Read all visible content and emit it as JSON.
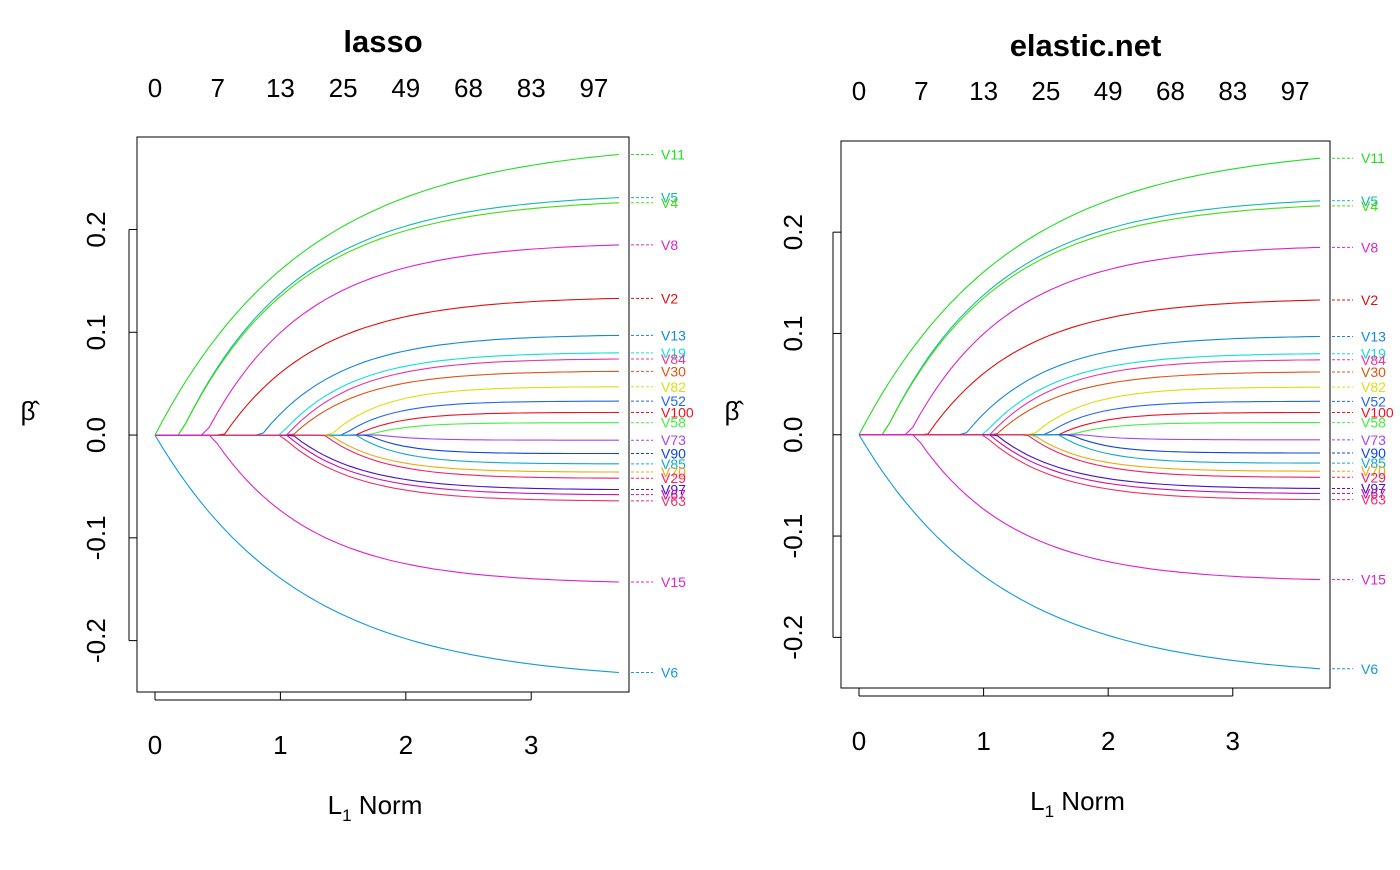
{
  "chart_data": [
    {
      "type": "line",
      "title": "lasso",
      "xlabel_main": "L",
      "xlabel_sub": "1",
      "xlabel_rest": " Norm",
      "ylabel": "β̂",
      "xlim": [
        0,
        3.7
      ],
      "ylim": [
        -0.25,
        0.29
      ],
      "x_ticks": [
        "0",
        "1",
        "2",
        "3"
      ],
      "y_ticks": [
        "-0.2",
        "-0.1",
        "0.0",
        "0.1",
        "0.2"
      ],
      "y_tick_values": [
        -0.2,
        -0.1,
        0.0,
        0.1,
        0.2
      ],
      "top_ticks": [
        "0",
        "7",
        "13",
        "25",
        "49",
        "68",
        "83",
        "97"
      ],
      "top_tick_positions": [
        0,
        0.5,
        1.0,
        1.5,
        2.0,
        2.5,
        3.0,
        3.5
      ],
      "series": [
        {
          "name": "V11",
          "color": "#22dd22",
          "entry": 0.0,
          "final": 0.273,
          "shape": 0.95
        },
        {
          "name": "V5",
          "color": "#11bbaa",
          "entry": 0.2,
          "final": 0.231,
          "shape": 1.2
        },
        {
          "name": "V4",
          "color": "#44dd11",
          "entry": 0.2,
          "final": 0.226,
          "shape": 1.2
        },
        {
          "name": "V8",
          "color": "#dd22cc",
          "entry": 0.4,
          "final": 0.185,
          "shape": 1.3
        },
        {
          "name": "V2",
          "color": "#dd1111",
          "entry": 0.55,
          "final": 0.133,
          "shape": 1.3
        },
        {
          "name": "V13",
          "color": "#1188dd",
          "entry": 0.85,
          "final": 0.097,
          "shape": 1.4
        },
        {
          "name": "V19",
          "color": "#11dddd",
          "entry": 1.0,
          "final": 0.08,
          "shape": 1.5
        },
        {
          "name": "V84",
          "color": "#ee3399",
          "entry": 1.05,
          "final": 0.074,
          "shape": 1.5
        },
        {
          "name": "V30",
          "color": "#dd5511",
          "entry": 1.1,
          "final": 0.062,
          "shape": 1.5
        },
        {
          "name": "V82",
          "color": "#dddd11",
          "entry": 1.4,
          "final": 0.047,
          "shape": 1.7
        },
        {
          "name": "V52",
          "color": "#2266ee",
          "entry": 1.5,
          "final": 0.033,
          "shape": 1.8
        },
        {
          "name": "V100",
          "color": "#ee1122",
          "entry": 1.6,
          "final": 0.022,
          "shape": 1.8
        },
        {
          "name": "V58",
          "color": "#44ee44",
          "entry": 1.7,
          "final": 0.012,
          "shape": 2.0
        },
        {
          "name": "V73",
          "color": "#aa44ee",
          "entry": 1.8,
          "final": -0.005,
          "shape": 2.0
        },
        {
          "name": "V90",
          "color": "#1144dd",
          "entry": 1.7,
          "final": -0.018,
          "shape": 2.0
        },
        {
          "name": "V85",
          "color": "#11aacc",
          "entry": 1.6,
          "final": -0.028,
          "shape": 1.8
        },
        {
          "name": "V70",
          "color": "#eeaa11",
          "entry": 1.4,
          "final": -0.036,
          "shape": 1.7
        },
        {
          "name": "V29",
          "color": "#ee2266",
          "entry": 1.35,
          "final": -0.042,
          "shape": 1.6
        },
        {
          "name": "V97",
          "color": "#4411cc",
          "entry": 1.1,
          "final": -0.053,
          "shape": 1.5
        },
        {
          "name": "V67",
          "color": "#cc11aa",
          "entry": 1.05,
          "final": -0.058,
          "shape": 1.5
        },
        {
          "name": "V63",
          "color": "#ee3366",
          "entry": 1.0,
          "final": -0.064,
          "shape": 1.5
        },
        {
          "name": "V15",
          "color": "#dd22cc",
          "entry": 0.45,
          "final": -0.143,
          "shape": 1.3
        },
        {
          "name": "V6",
          "color": "#1199dd",
          "entry": 0.0,
          "final": -0.231,
          "shape": 1.0
        }
      ]
    },
    {
      "type": "line",
      "title": "elastic.net",
      "xlabel_main": "L",
      "xlabel_sub": "1",
      "xlabel_rest": " Norm",
      "ylabel": "β̂",
      "xlim": [
        0,
        3.7
      ],
      "ylim": [
        -0.25,
        0.29
      ],
      "x_ticks": [
        "0",
        "1",
        "2",
        "3"
      ],
      "y_ticks": [
        "-0.2",
        "-0.1",
        "0.0",
        "0.1",
        "0.2"
      ],
      "y_tick_values": [
        -0.2,
        -0.1,
        0.0,
        0.1,
        0.2
      ],
      "top_ticks": [
        "0",
        "7",
        "13",
        "25",
        "49",
        "68",
        "83",
        "97"
      ],
      "top_tick_positions": [
        0,
        0.5,
        1.0,
        1.5,
        2.0,
        2.5,
        3.0,
        3.5
      ],
      "series": [
        {
          "name": "V11",
          "color": "#22dd22",
          "entry": 0.0,
          "final": 0.273,
          "shape": 0.95
        },
        {
          "name": "V5",
          "color": "#11bbaa",
          "entry": 0.2,
          "final": 0.231,
          "shape": 1.2
        },
        {
          "name": "V4",
          "color": "#44dd11",
          "entry": 0.2,
          "final": 0.226,
          "shape": 1.2
        },
        {
          "name": "V8",
          "color": "#dd22cc",
          "entry": 0.4,
          "final": 0.185,
          "shape": 1.3
        },
        {
          "name": "V2",
          "color": "#dd1111",
          "entry": 0.55,
          "final": 0.133,
          "shape": 1.3
        },
        {
          "name": "V13",
          "color": "#1188dd",
          "entry": 0.85,
          "final": 0.097,
          "shape": 1.4
        },
        {
          "name": "V19",
          "color": "#11dddd",
          "entry": 1.0,
          "final": 0.08,
          "shape": 1.5
        },
        {
          "name": "V84",
          "color": "#ee3399",
          "entry": 1.05,
          "final": 0.074,
          "shape": 1.5
        },
        {
          "name": "V30",
          "color": "#dd5511",
          "entry": 1.1,
          "final": 0.062,
          "shape": 1.5
        },
        {
          "name": "V82",
          "color": "#dddd11",
          "entry": 1.4,
          "final": 0.047,
          "shape": 1.7
        },
        {
          "name": "V52",
          "color": "#2266ee",
          "entry": 1.5,
          "final": 0.033,
          "shape": 1.8
        },
        {
          "name": "V100",
          "color": "#ee1122",
          "entry": 1.6,
          "final": 0.022,
          "shape": 1.8
        },
        {
          "name": "V58",
          "color": "#44ee44",
          "entry": 1.7,
          "final": 0.012,
          "shape": 2.0
        },
        {
          "name": "V73",
          "color": "#aa44ee",
          "entry": 1.8,
          "final": -0.005,
          "shape": 2.0
        },
        {
          "name": "V90",
          "color": "#1144dd",
          "entry": 1.7,
          "final": -0.018,
          "shape": 2.0
        },
        {
          "name": "V85",
          "color": "#11aacc",
          "entry": 1.6,
          "final": -0.028,
          "shape": 1.8
        },
        {
          "name": "V70",
          "color": "#eeaa11",
          "entry": 1.4,
          "final": -0.036,
          "shape": 1.7
        },
        {
          "name": "V29",
          "color": "#ee2266",
          "entry": 1.35,
          "final": -0.042,
          "shape": 1.6
        },
        {
          "name": "V97",
          "color": "#4411cc",
          "entry": 1.1,
          "final": -0.053,
          "shape": 1.5
        },
        {
          "name": "V67",
          "color": "#cc11aa",
          "entry": 1.05,
          "final": -0.058,
          "shape": 1.5
        },
        {
          "name": "V63",
          "color": "#ee3366",
          "entry": 1.0,
          "final": -0.064,
          "shape": 1.5
        },
        {
          "name": "V15",
          "color": "#dd22cc",
          "entry": 0.45,
          "final": -0.143,
          "shape": 1.3
        },
        {
          "name": "V6",
          "color": "#1199dd",
          "entry": 0.0,
          "final": -0.231,
          "shape": 1.0
        }
      ]
    }
  ]
}
